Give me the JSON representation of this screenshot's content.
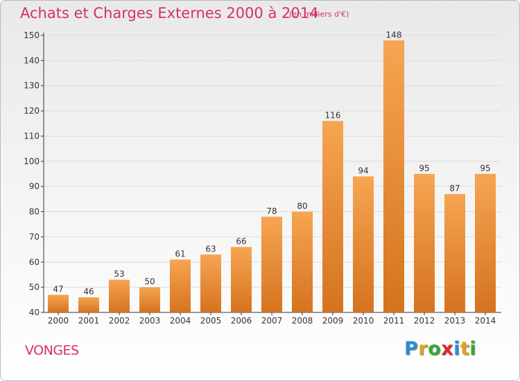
{
  "title": "Achats et Charges Externes 2000 à 2014",
  "subtitle": "(en milliers d'€)",
  "location": "VONGES",
  "logo": {
    "letters": [
      {
        "char": "P",
        "color": "#2a8fd4"
      },
      {
        "char": "r",
        "color": "#e8a117"
      },
      {
        "char": "o",
        "color": "#39a935"
      },
      {
        "char": "x",
        "color": "#e2262e"
      },
      {
        "char": "i",
        "color": "#2a8fd4"
      },
      {
        "char": "t",
        "color": "#e8a117"
      },
      {
        "char": "i",
        "color": "#39a935"
      }
    ]
  },
  "colors": {
    "title": "#d4306a",
    "bar_light": "#f6a552",
    "bar_dark": "#d5731f",
    "axis": "#333333",
    "grid": "#dcdcdc"
  },
  "chart_data": {
    "type": "bar",
    "categories": [
      "2000",
      "2001",
      "2002",
      "2003",
      "2004",
      "2005",
      "2006",
      "2007",
      "2008",
      "2009",
      "2010",
      "2011",
      "2012",
      "2013",
      "2014"
    ],
    "values": [
      47,
      46,
      53,
      50,
      61,
      63,
      66,
      78,
      80,
      116,
      94,
      148,
      95,
      87,
      95
    ],
    "data_labels": [
      "47",
      "46",
      "53",
      "50",
      "61",
      "63",
      "66",
      "78",
      "80",
      "116",
      "94",
      "148",
      "95",
      "87",
      "95"
    ],
    "ylim": [
      40,
      150
    ],
    "yticks": [
      "40",
      "50",
      "60",
      "70",
      "80",
      "90",
      "100",
      "110",
      "120",
      "130",
      "140",
      "150"
    ],
    "xlabel": "",
    "ylabel": "",
    "grid": true
  }
}
